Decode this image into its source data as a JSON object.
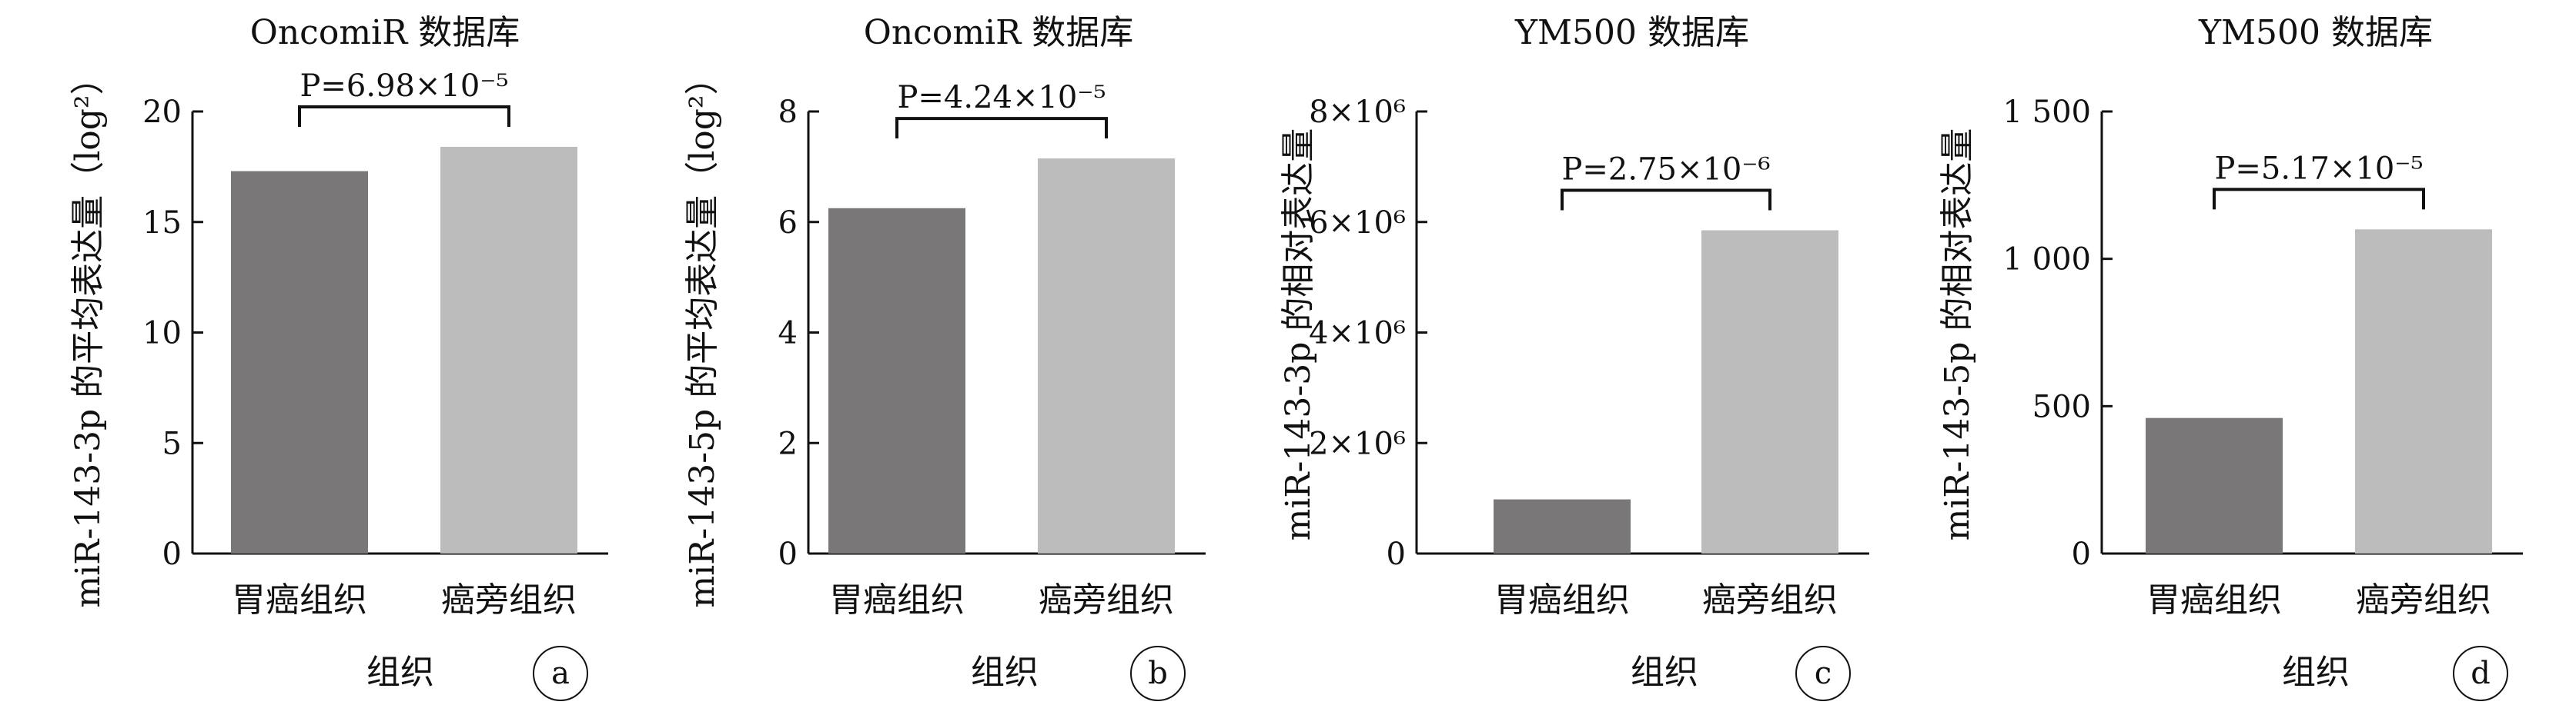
{
  "chart_data": [
    {
      "type": "bar",
      "title": "OncomiR 数据库",
      "xlabel": "组织",
      "ylabel": "miR-143-3p 的平均表达量（log²）",
      "categories": [
        "胃癌组织",
        "癌旁组织"
      ],
      "values": [
        17.3,
        18.4
      ],
      "ylim": [
        0,
        20
      ],
      "ytick_labels": [
        "0",
        "5",
        "10",
        "15",
        "20"
      ],
      "annotation": "P=6.98×10⁻⁵",
      "panel_letter": "a",
      "colors": [
        "#797778",
        "#bcbcbc"
      ]
    },
    {
      "type": "bar",
      "title": "OncomiR 数据库",
      "xlabel": "组织",
      "ylabel": "miR-143-5p 的平均表达量（log²）",
      "categories": [
        "胃癌组织",
        "癌旁组织"
      ],
      "values": [
        6.25,
        7.15
      ],
      "ylim": [
        0,
        8
      ],
      "ytick_labels": [
        "0",
        "2",
        "4",
        "6",
        "8"
      ],
      "annotation": "P=4.24×10⁻⁵",
      "panel_letter": "b",
      "colors": [
        "#797778",
        "#bcbcbc"
      ]
    },
    {
      "type": "bar",
      "title": "YM500 数据库",
      "xlabel": "组织",
      "ylabel": "miR-143-3p 的相对表达量",
      "categories": [
        "胃癌组织",
        "癌旁组织"
      ],
      "values": [
        980000,
        5850000
      ],
      "ylim": [
        0,
        8000000
      ],
      "ytick_labels": [
        "0",
        "2×10⁶",
        "4×10⁶",
        "6×10⁶",
        "8×10⁶"
      ],
      "annotation": "P=2.75×10⁻⁶",
      "panel_letter": "c",
      "colors": [
        "#797778",
        "#bcbcbc"
      ]
    },
    {
      "type": "bar",
      "title": "YM500 数据库",
      "xlabel": "组织",
      "ylabel": "miR-143-5p 的相对表达量",
      "categories": [
        "胃癌组织",
        "癌旁组织"
      ],
      "values": [
        460,
        1100
      ],
      "ylim": [
        0,
        1500
      ],
      "ytick_labels": [
        "0",
        "500",
        "1 000",
        "1 500"
      ],
      "annotation": "P=5.17×10⁻⁵",
      "panel_letter": "d",
      "colors": [
        "#797778",
        "#bcbcbc"
      ]
    }
  ]
}
